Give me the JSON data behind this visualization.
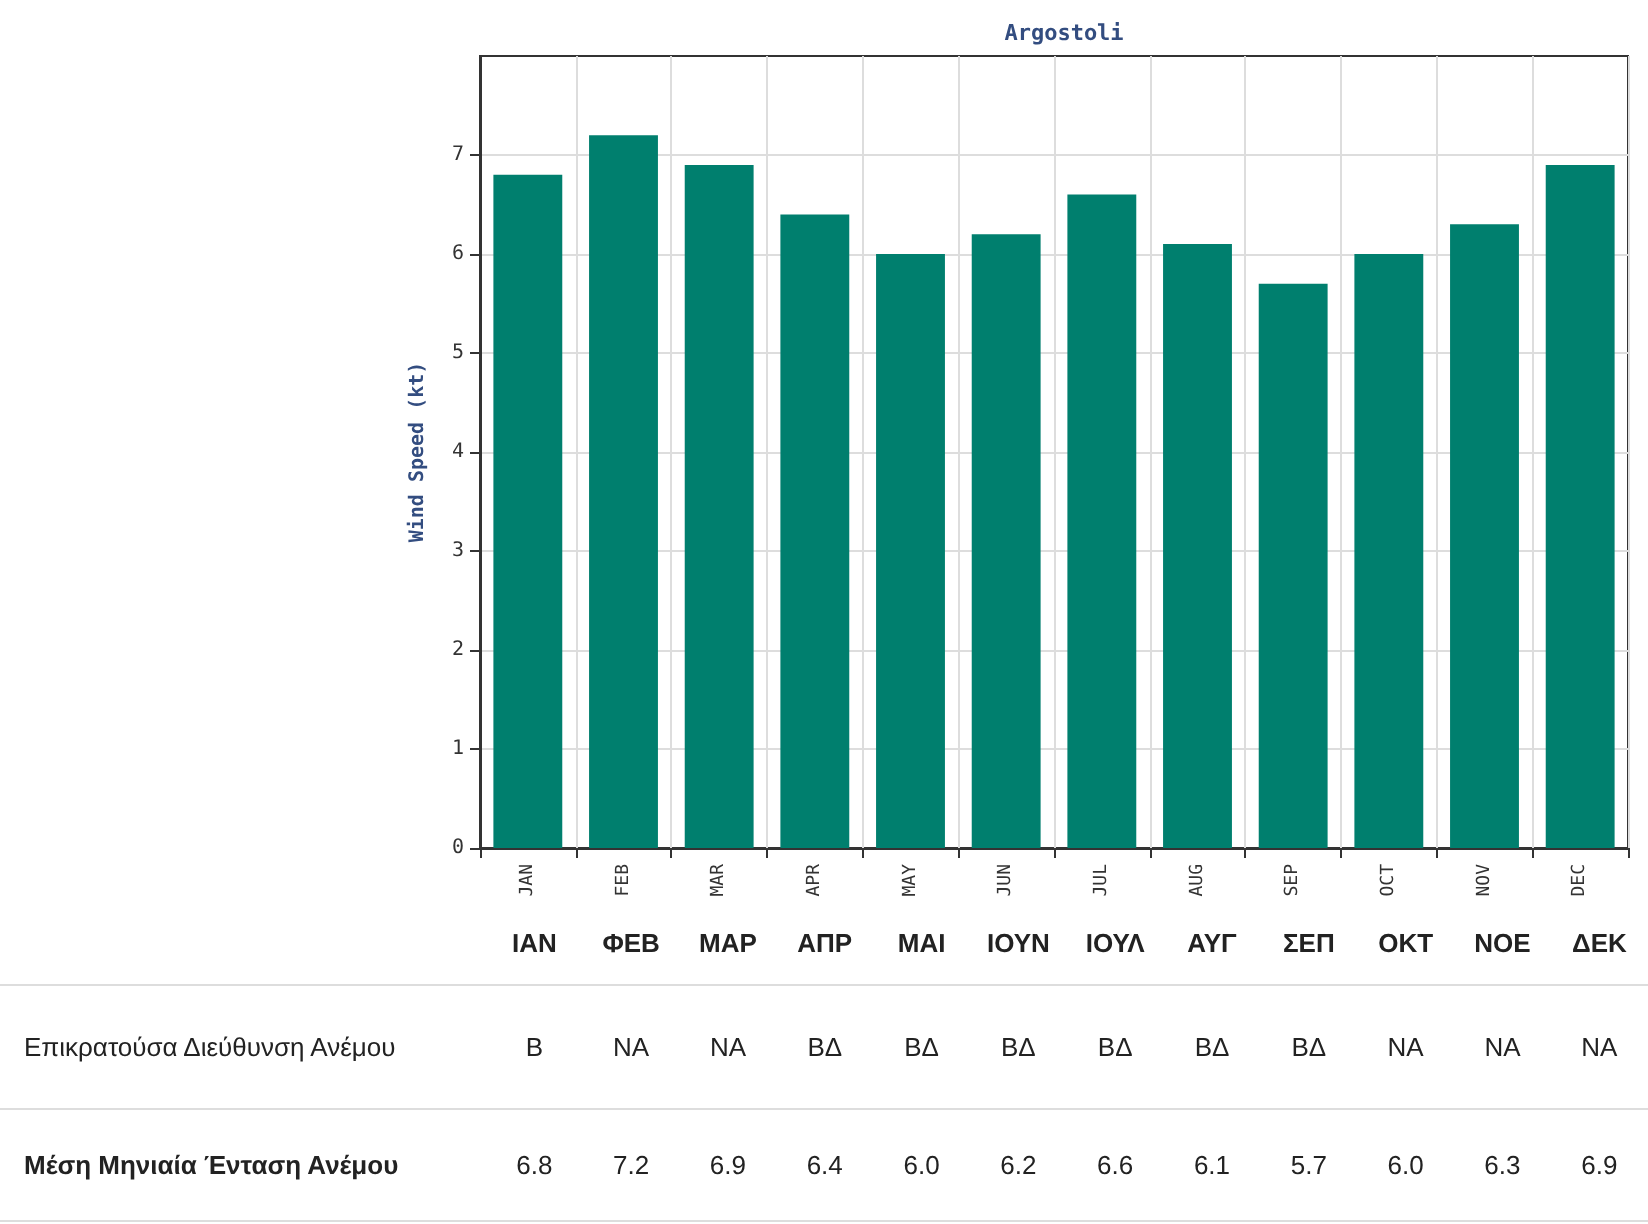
{
  "chart_data": {
    "type": "bar",
    "title": "Argostoli",
    "ylabel": "Wind Speed (kt)",
    "categories": [
      "JAN",
      "FEB",
      "MAR",
      "APR",
      "MAY",
      "JUN",
      "JUL",
      "AUG",
      "SEP",
      "OCT",
      "NOV",
      "DEC"
    ],
    "values": [
      6.8,
      7.2,
      6.9,
      6.4,
      6.0,
      6.2,
      6.6,
      6.1,
      5.7,
      6.0,
      6.3,
      6.9
    ],
    "value_labels": [
      "6.8",
      "7.2",
      "6.9",
      "6.4",
      "6.0",
      "6.2",
      "6.6",
      "6.1",
      "5.7",
      "6.0",
      "6.3",
      "6.9"
    ],
    "color": "#007f6e",
    "ylim": [
      0,
      8
    ],
    "yticks": [
      0,
      1,
      2,
      3,
      4,
      5,
      6,
      7
    ],
    "grid": true,
    "annotations": [
      "ΙΑΝ",
      "ΦΕΒ",
      "ΜΑΡ",
      "ΑΠΡ",
      "ΜΑΙ",
      "ΙΟΥΝ",
      "ΙΟΥΛ",
      "ΑΥΓ",
      "ΣΕΠ",
      "ΟΚΤ",
      "ΝΟΕ",
      "ΔΕΚ",
      "Επικρατούσα Διεύθυνση Ανέμου",
      "Β",
      "ΝΑ",
      "ΝΑ",
      "ΒΔ",
      "ΒΔ",
      "ΒΔ",
      "ΒΔ",
      "ΒΔ",
      "ΒΔ",
      "ΝΑ",
      "ΝΑ",
      "ΝΑ",
      "Μέση Μηνιαία Ένταση Ανέμου"
    ]
  }
}
